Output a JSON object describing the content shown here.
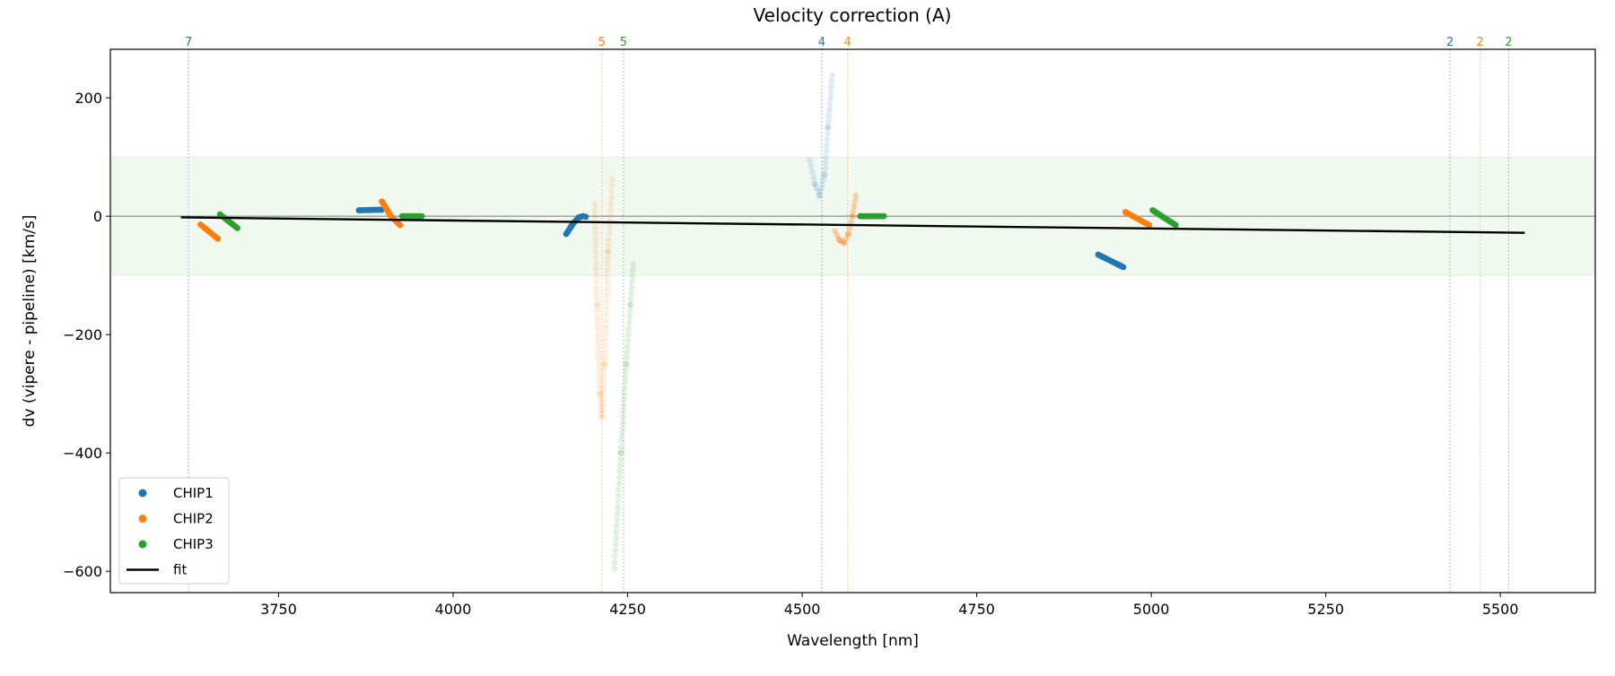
{
  "chart_data": {
    "type": "scatter",
    "title": "Velocity correction (A)",
    "xlabel": "Wavelength [nm]",
    "ylabel": "dv (vipere - pipeline) [km/s]",
    "xlim": [
      3509,
      5636
    ],
    "ylim": [
      -636,
      282
    ],
    "xticks": [
      3750,
      4000,
      4250,
      4500,
      4750,
      5000,
      5250,
      5500
    ],
    "yticks": [
      -600,
      -400,
      -200,
      0,
      200
    ],
    "band": {
      "y0": -100,
      "y1": 100,
      "color": "#2ca02c"
    },
    "zero_line": 0,
    "legend": {
      "placement": "lower-left",
      "entries": [
        {
          "label": "CHIP1",
          "color": "#1f77b4",
          "kind": "point"
        },
        {
          "label": "CHIP2",
          "color": "#ff7f0e",
          "kind": "point"
        },
        {
          "label": "CHIP3",
          "color": "#2ca02c",
          "kind": "point"
        },
        {
          "label": "fit",
          "color": "#000000",
          "kind": "line"
        }
      ]
    },
    "order_markers": [
      {
        "x": 3621,
        "label": "7",
        "color": "#1f77b4"
      },
      {
        "x": 4213,
        "label": "5",
        "color": "#ff7f0e"
      },
      {
        "x": 4244,
        "label": "5",
        "color": "#2ca02c"
      },
      {
        "x": 4528,
        "label": "4",
        "color": "#1f77b4"
      },
      {
        "x": 4565,
        "label": "4",
        "color": "#ff7f0e"
      },
      {
        "x": 5428,
        "label": "2",
        "color": "#1f77b4"
      },
      {
        "x": 5471,
        "label": "2",
        "color": "#ff7f0e"
      },
      {
        "x": 5512,
        "label": "2",
        "color": "#2ca02c"
      }
    ],
    "fit": {
      "x": [
        3610,
        5535
      ],
      "y": [
        -2,
        -28
      ]
    },
    "series": [
      {
        "name": "CHIP1",
        "color": "#1f77b4",
        "segments": [
          {
            "alpha": 1,
            "points": [
              [
                3865,
                10
              ],
              [
                3898,
                11
              ]
            ]
          },
          {
            "alpha": 1,
            "points": [
              [
                4162,
                -30
              ],
              [
                4172,
                -12
              ],
              [
                4180,
                -2
              ],
              [
                4186,
                0
              ],
              [
                4190,
                -1
              ]
            ]
          },
          {
            "alpha": 0.15,
            "points": [
              [
                4511,
                95
              ],
              [
                4518,
                55
              ],
              [
                4525,
                35
              ],
              [
                4532,
                70
              ],
              [
                4537,
                150
              ],
              [
                4543,
                238
              ]
            ]
          },
          {
            "alpha": 1,
            "points": [
              [
                4924,
                -65
              ],
              [
                4960,
                -86
              ]
            ]
          }
        ]
      },
      {
        "name": "CHIP2",
        "color": "#ff7f0e",
        "segments": [
          {
            "alpha": 1,
            "points": [
              [
                3638,
                -14
              ],
              [
                3663,
                -38
              ]
            ]
          },
          {
            "alpha": 1,
            "points": [
              [
                3898,
                25
              ],
              [
                3911,
                0
              ],
              [
                3924,
                -15
              ]
            ]
          },
          {
            "alpha": 0.15,
            "points": [
              [
                4203,
                20
              ],
              [
                4206,
                -150
              ],
              [
                4210,
                -300
              ],
              [
                4213,
                -338
              ],
              [
                4217,
                -250
              ],
              [
                4222,
                -60
              ],
              [
                4228,
                62
              ]
            ]
          },
          {
            "alpha": 0.3,
            "points": [
              [
                4547,
                -25
              ],
              [
                4553,
                -40
              ],
              [
                4560,
                -45
              ],
              [
                4566,
                -30
              ],
              [
                4572,
                0
              ],
              [
                4577,
                35
              ]
            ]
          },
          {
            "alpha": 1,
            "points": [
              [
                4963,
                7
              ],
              [
                4997,
                -15
              ]
            ]
          }
        ]
      },
      {
        "name": "CHIP3",
        "color": "#2ca02c",
        "segments": [
          {
            "alpha": 1,
            "points": [
              [
                3666,
                3
              ],
              [
                3691,
                -20
              ]
            ]
          },
          {
            "alpha": 1,
            "points": [
              [
                3927,
                0
              ],
              [
                3955,
                0
              ]
            ]
          },
          {
            "alpha": 0.15,
            "points": [
              [
                4231,
                -595
              ],
              [
                4240,
                -400
              ],
              [
                4248,
                -250
              ],
              [
                4254,
                -150
              ],
              [
                4258,
                -82
              ]
            ]
          },
          {
            "alpha": 1,
            "points": [
              [
                4583,
                0
              ],
              [
                4617,
                0
              ]
            ]
          },
          {
            "alpha": 1,
            "points": [
              [
                5002,
                10
              ],
              [
                5035,
                -15
              ]
            ]
          }
        ]
      }
    ]
  }
}
